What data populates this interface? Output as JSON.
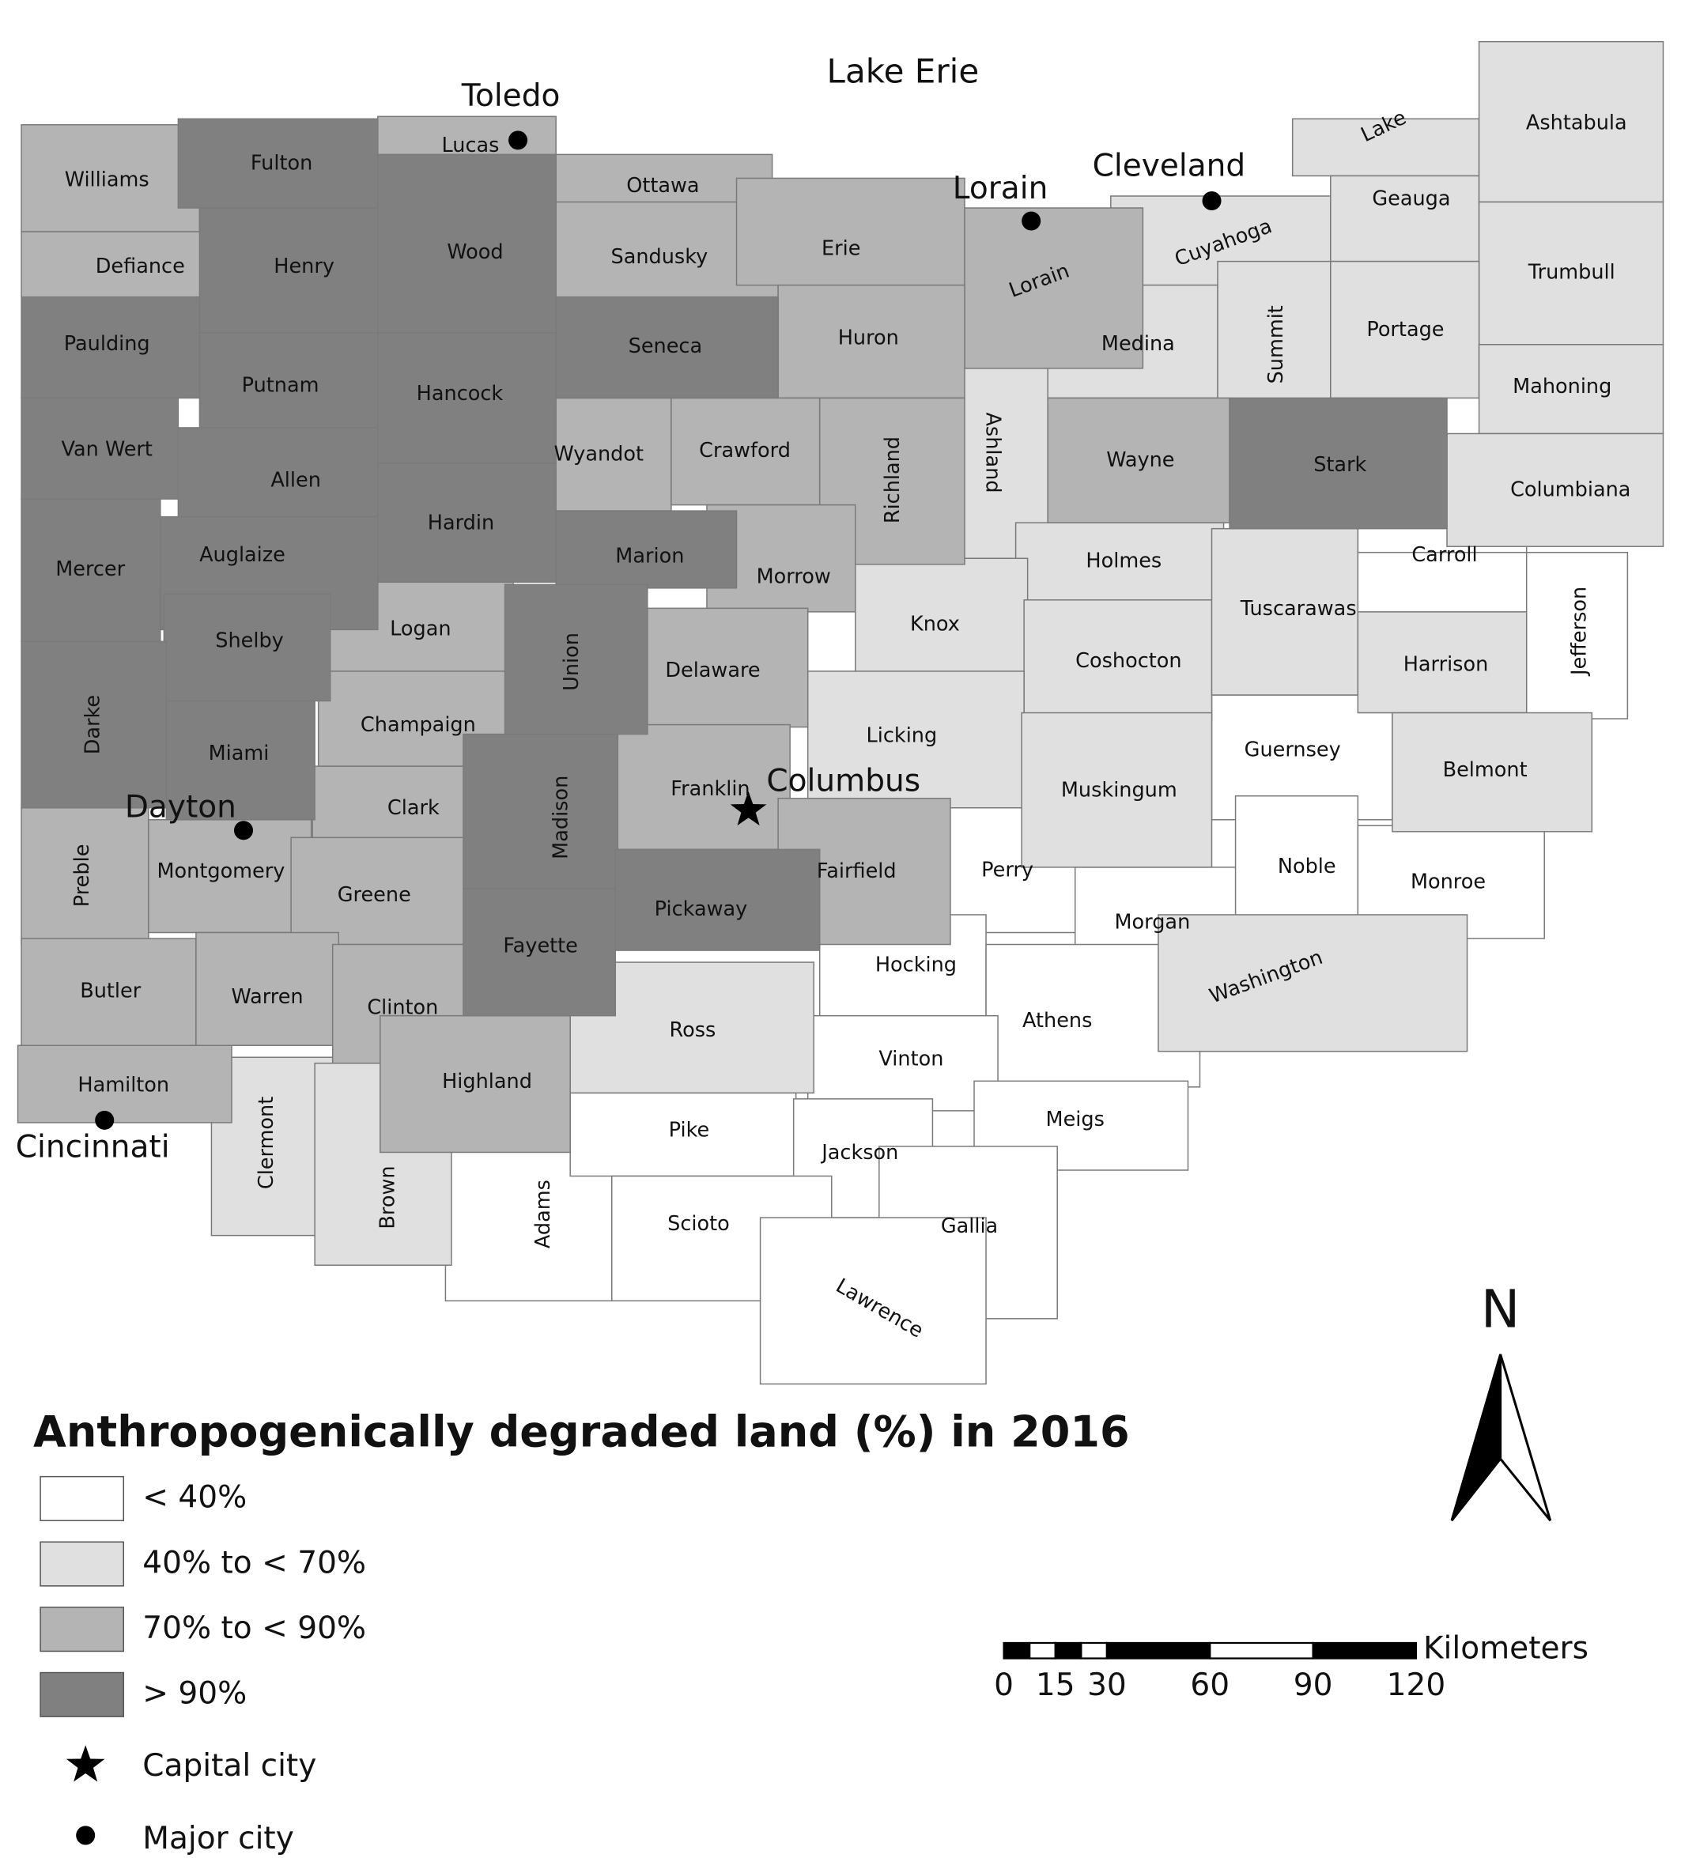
{
  "title": "Anthropogenically degraded land (%) in 2016",
  "lake": "Lake Erie",
  "classes": [
    {
      "label": "< 40%",
      "color": "#ffffff",
      "counties": [
        "Carroll",
        "Jefferson",
        "Guernsey",
        "Perry",
        "Morgan",
        "Noble",
        "Monroe",
        "Hocking",
        "Athens",
        "Adams",
        "Pike",
        "Vinton",
        "Jackson",
        "Meigs",
        "Scioto",
        "Gallia",
        "Lawrence"
      ]
    },
    {
      "label": "40% to < 70%",
      "color": "#e0e0e0",
      "counties": [
        "Cuyahoga",
        "Lake",
        "Geauga",
        "Ashtabula",
        "Trumbull",
        "Medina",
        "Summit",
        "Portage",
        "Mahoning",
        "Ashland",
        "Columbiana",
        "Holmes",
        "Knox",
        "Coshocton",
        "Tuscarawas",
        "Harrison",
        "Licking",
        "Muskingum",
        "Belmont",
        "Washington",
        "Ross",
        "Clermont",
        "Brown"
      ]
    },
    {
      "label": "70% to < 90%",
      "color": "#b4b4b4",
      "counties": [
        "Williams",
        "Lucas",
        "Ottawa",
        "Defiance",
        "Sandusky",
        "Erie",
        "Lorain",
        "Huron",
        "Wyandot",
        "Crawford",
        "Richland",
        "Wayne",
        "Morrow",
        "Logan",
        "Delaware",
        "Champaign",
        "Franklin",
        "Clark",
        "Preble",
        "Montgomery",
        "Greene",
        "Fairfield",
        "Butler",
        "Warren",
        "Clinton",
        "Highland",
        "Hamilton"
      ]
    },
    {
      "label": "> 90%",
      "color": "#808080",
      "counties": [
        "Fulton",
        "Henry",
        "Wood",
        "Paulding",
        "Putnam",
        "Hancock",
        "Seneca",
        "Van Wert",
        "Allen",
        "Mercer",
        "Auglaize",
        "Hardin",
        "Marion",
        "Stark",
        "Shelby",
        "Union",
        "Darke",
        "Miami",
        "Madison",
        "Pickaway",
        "Fayette"
      ]
    }
  ],
  "symbols": [
    {
      "label": "Capital city"
    },
    {
      "label": "Major city"
    }
  ],
  "capital": "Columbus",
  "cities": [
    "Toledo",
    "Lorain",
    "Cleveland",
    "Dayton",
    "Cincinnati"
  ],
  "scale": {
    "unit": "Kilometers",
    "ticks": [
      0,
      15,
      30,
      60,
      90,
      120
    ]
  },
  "north": "N"
}
